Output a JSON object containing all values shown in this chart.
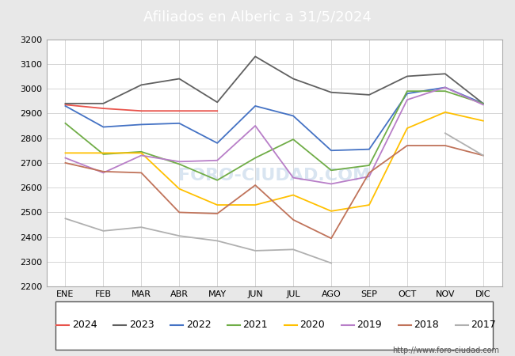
{
  "title": "Afiliados en Alberic a 31/5/2024",
  "header_bg": "#5b9bd5",
  "ylim": [
    2200,
    3200
  ],
  "yticks": [
    2200,
    2300,
    2400,
    2500,
    2600,
    2700,
    2800,
    2900,
    3000,
    3100,
    3200
  ],
  "months": [
    "ENE",
    "FEB",
    "MAR",
    "ABR",
    "MAY",
    "JUN",
    "JUL",
    "AGO",
    "SEP",
    "OCT",
    "NOV",
    "DIC"
  ],
  "watermark": "FORO-CIUDAD.COM",
  "url": "http://www.foro-ciudad.com",
  "series": {
    "2024": {
      "color": "#e8534b",
      "data": [
        2935,
        2920,
        2910,
        2910,
        2910,
        null,
        null,
        null,
        null,
        null,
        null,
        null
      ]
    },
    "2023": {
      "color": "#606060",
      "data": [
        2940,
        2940,
        3015,
        3040,
        2945,
        3130,
        3040,
        2985,
        2975,
        3050,
        3060,
        2940
      ]
    },
    "2022": {
      "color": "#4472c4",
      "data": [
        2930,
        2845,
        2855,
        2860,
        2780,
        2930,
        2890,
        2750,
        2755,
        2980,
        3005,
        2940
      ]
    },
    "2021": {
      "color": "#70ad47",
      "data": [
        2860,
        2735,
        2745,
        2695,
        2630,
        2720,
        2795,
        2670,
        2690,
        2990,
        2990,
        2940
      ]
    },
    "2020": {
      "color": "#ffc000",
      "data": [
        2740,
        2740,
        2740,
        2595,
        2530,
        2530,
        2570,
        2505,
        2530,
        2840,
        2905,
        2870
      ]
    },
    "2019": {
      "color": "#b87ec8",
      "data": [
        2720,
        2660,
        2730,
        2705,
        2710,
        2850,
        2640,
        2615,
        2645,
        2955,
        3005,
        2935
      ]
    },
    "2018": {
      "color": "#c0735a",
      "data": [
        2700,
        2665,
        2660,
        2500,
        2495,
        2610,
        2470,
        2395,
        2660,
        2770,
        2770,
        2730
      ]
    },
    "2017": {
      "color": "#b0b0b0",
      "data": [
        2475,
        2425,
        2440,
        2405,
        2385,
        2345,
        2350,
        2295,
        null,
        null,
        2820,
        2730
      ]
    }
  },
  "legend_order": [
    "2024",
    "2023",
    "2022",
    "2021",
    "2020",
    "2019",
    "2018",
    "2017"
  ],
  "fig_bg": "#e8e8e8",
  "plot_bg": "#ffffff",
  "grid_color": "#d0d0d0",
  "fontsize_title": 13,
  "fontsize_ticks": 8,
  "fontsize_legend": 9
}
